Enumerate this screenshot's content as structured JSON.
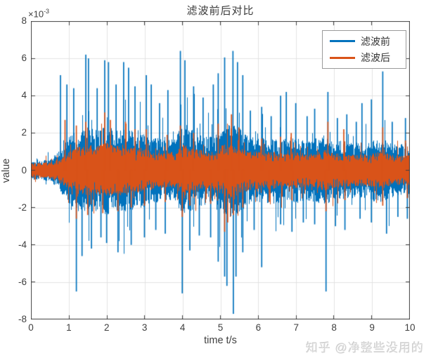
{
  "figure": {
    "title": "滤波前后对比",
    "xlabel": "time t/s",
    "ylabel": "value",
    "y_multiplier_base": "×10",
    "y_multiplier_exp": "-3"
  },
  "axes": {
    "xlim": [
      0,
      10
    ],
    "ylim_scaled": [
      -8,
      8
    ],
    "value_scale": "1e-3",
    "xticks": [
      "0",
      "1",
      "2",
      "3",
      "4",
      "5",
      "6",
      "7",
      "8",
      "9",
      "10"
    ],
    "yticks": [
      "8",
      "6",
      "4",
      "2",
      "0",
      "-2",
      "-4",
      "-6",
      "-8"
    ],
    "grid": true,
    "axis_color": "#404040",
    "grid_color": "#e3e3e3",
    "tick_direction": "in"
  },
  "legend": {
    "position": "top-right",
    "entries": [
      {
        "label": "滤波前",
        "color": "#0072BD"
      },
      {
        "label": "滤波后",
        "color": "#D95319"
      }
    ]
  },
  "watermark": "知乎 @净整些没用的",
  "chart_data": {
    "type": "line",
    "title": "滤波前后对比",
    "xlabel": "time t/s",
    "ylabel": "value",
    "xlim": [
      0,
      10
    ],
    "ylim": [
      -0.008,
      0.008
    ],
    "ylim_scaled_by_1e-3": [
      -8,
      8
    ],
    "legend_position": "top-right",
    "grid": true,
    "representation": "dense stochastic waveforms; each series given as amplitude envelope sampled every 0.25 s (units of 1e-3) plus prominent spikes as [t_seconds, value_x1e-3]",
    "envelope_step_s": 0.25,
    "series": [
      {
        "name": "滤波前",
        "color": "#0072BD",
        "envelope": [
          0.5,
          0.55,
          0.6,
          1.1,
          1.8,
          2.2,
          2.3,
          2.2,
          2.4,
          2.2,
          2.3,
          2.1,
          2.0,
          1.8,
          1.6,
          1.7,
          2.4,
          2.2,
          1.9,
          1.8,
          2.3,
          2.5,
          2.3,
          1.9,
          1.7,
          1.8,
          1.8,
          1.7,
          1.8,
          1.6,
          1.7,
          1.9,
          1.7,
          1.6,
          1.5,
          1.5,
          1.6,
          1.8,
          1.5,
          1.4,
          1.5
        ],
        "spikes_pos": [
          [
            0.78,
            5.1
          ],
          [
            0.95,
            4.6
          ],
          [
            1.13,
            4.4
          ],
          [
            1.45,
            6.2
          ],
          [
            1.52,
            6.0
          ],
          [
            1.75,
            4.4
          ],
          [
            1.95,
            5.9
          ],
          [
            2.05,
            5.8
          ],
          [
            2.25,
            4.6
          ],
          [
            2.45,
            5.8
          ],
          [
            2.58,
            5.5
          ],
          [
            2.75,
            4.5
          ],
          [
            3.05,
            5.1
          ],
          [
            3.18,
            4.6
          ],
          [
            3.4,
            3.6
          ],
          [
            3.62,
            4.3
          ],
          [
            3.95,
            6.4
          ],
          [
            4.07,
            5.9
          ],
          [
            4.3,
            4.5
          ],
          [
            4.55,
            3.9
          ],
          [
            4.82,
            4.6
          ],
          [
            4.95,
            5.2
          ],
          [
            5.12,
            6.05
          ],
          [
            5.34,
            6.4
          ],
          [
            5.46,
            5.8
          ],
          [
            5.6,
            5.1
          ],
          [
            5.8,
            3.2
          ],
          [
            6.1,
            3.4
          ],
          [
            6.35,
            2.9
          ],
          [
            6.6,
            4.0
          ],
          [
            6.75,
            4.2
          ],
          [
            7.0,
            3.6
          ],
          [
            7.3,
            2.9
          ],
          [
            7.5,
            3.3
          ],
          [
            7.85,
            4.2
          ],
          [
            8.1,
            2.8
          ],
          [
            8.35,
            3.0
          ],
          [
            8.6,
            2.6
          ],
          [
            8.75,
            3.6
          ],
          [
            9.0,
            3.8
          ],
          [
            9.3,
            5.3
          ],
          [
            9.55,
            2.6
          ],
          [
            9.9,
            2.8
          ]
        ],
        "spikes_neg": [
          [
            1.2,
            -6.5
          ],
          [
            1.35,
            -4.6
          ],
          [
            1.6,
            -4.2
          ],
          [
            1.85,
            -3.6
          ],
          [
            2.0,
            -3.9
          ],
          [
            2.3,
            -4.4
          ],
          [
            2.65,
            -4.0
          ],
          [
            3.0,
            -3.6
          ],
          [
            3.3,
            -3.2
          ],
          [
            3.55,
            -3.4
          ],
          [
            4.0,
            -6.6
          ],
          [
            4.2,
            -4.3
          ],
          [
            4.45,
            -3.5
          ],
          [
            4.75,
            -3.6
          ],
          [
            4.95,
            -4.9
          ],
          [
            5.12,
            -5.7
          ],
          [
            5.18,
            -6.2
          ],
          [
            5.35,
            -7.7
          ],
          [
            5.42,
            -5.7
          ],
          [
            5.6,
            -4.4
          ],
          [
            5.9,
            -3.2
          ],
          [
            6.1,
            -5.2
          ],
          [
            6.6,
            -2.9
          ],
          [
            6.9,
            -3.3
          ],
          [
            7.2,
            -2.8
          ],
          [
            7.5,
            -2.9
          ],
          [
            7.8,
            -6.5
          ],
          [
            8.05,
            -3.0
          ],
          [
            8.3,
            -3.2
          ],
          [
            8.7,
            -2.6
          ],
          [
            9.0,
            -2.8
          ],
          [
            9.4,
            -3.4
          ],
          [
            9.7,
            -2.5
          ],
          [
            9.95,
            -2.6
          ]
        ]
      },
      {
        "name": "滤波后",
        "color": "#D95319",
        "envelope": [
          0.4,
          0.42,
          0.45,
          0.7,
          1.0,
          1.3,
          1.4,
          1.3,
          1.5,
          1.3,
          1.4,
          1.2,
          1.2,
          1.0,
          0.9,
          1.0,
          1.4,
          1.2,
          1.1,
          1.0,
          1.3,
          1.5,
          1.3,
          1.1,
          1.0,
          1.0,
          1.0,
          0.95,
          1.0,
          0.9,
          0.95,
          1.1,
          0.95,
          0.9,
          0.85,
          0.85,
          0.9,
          1.0,
          0.85,
          0.8,
          0.85
        ],
        "spikes_pos": [
          [
            0.9,
            2.7
          ],
          [
            1.2,
            2.4
          ],
          [
            1.45,
            2.6
          ],
          [
            1.95,
            3.1
          ],
          [
            2.1,
            2.7
          ],
          [
            2.5,
            2.6
          ],
          [
            2.75,
            2.2
          ],
          [
            3.05,
            2.2
          ],
          [
            3.6,
            1.9
          ],
          [
            3.95,
            2.4
          ],
          [
            4.3,
            2.0
          ],
          [
            4.95,
            2.5
          ],
          [
            5.3,
            3.0
          ],
          [
            5.5,
            2.3
          ],
          [
            6.1,
            1.7
          ],
          [
            6.6,
            1.8
          ],
          [
            6.88,
            2.0
          ],
          [
            7.85,
            2.6
          ],
          [
            8.27,
            2.2
          ],
          [
            9.3,
            2.3
          ],
          [
            9.9,
            1.6
          ]
        ],
        "spikes_neg": [
          [
            1.2,
            -2.6
          ],
          [
            1.5,
            -2.4
          ],
          [
            1.9,
            -2.3
          ],
          [
            2.3,
            -2.2
          ],
          [
            2.65,
            -2.0
          ],
          [
            3.0,
            -1.9
          ],
          [
            3.55,
            -1.7
          ],
          [
            4.0,
            -2.5
          ],
          [
            4.2,
            -1.9
          ],
          [
            4.75,
            -1.8
          ],
          [
            5.12,
            -3.3
          ],
          [
            5.2,
            -2.8
          ],
          [
            5.35,
            -2.4
          ],
          [
            5.6,
            -2.0
          ],
          [
            6.3,
            -1.7
          ],
          [
            6.9,
            -1.6
          ],
          [
            7.8,
            -2.2
          ],
          [
            8.3,
            -1.6
          ],
          [
            9.3,
            -1.9
          ],
          [
            9.95,
            -1.5
          ]
        ]
      }
    ]
  }
}
